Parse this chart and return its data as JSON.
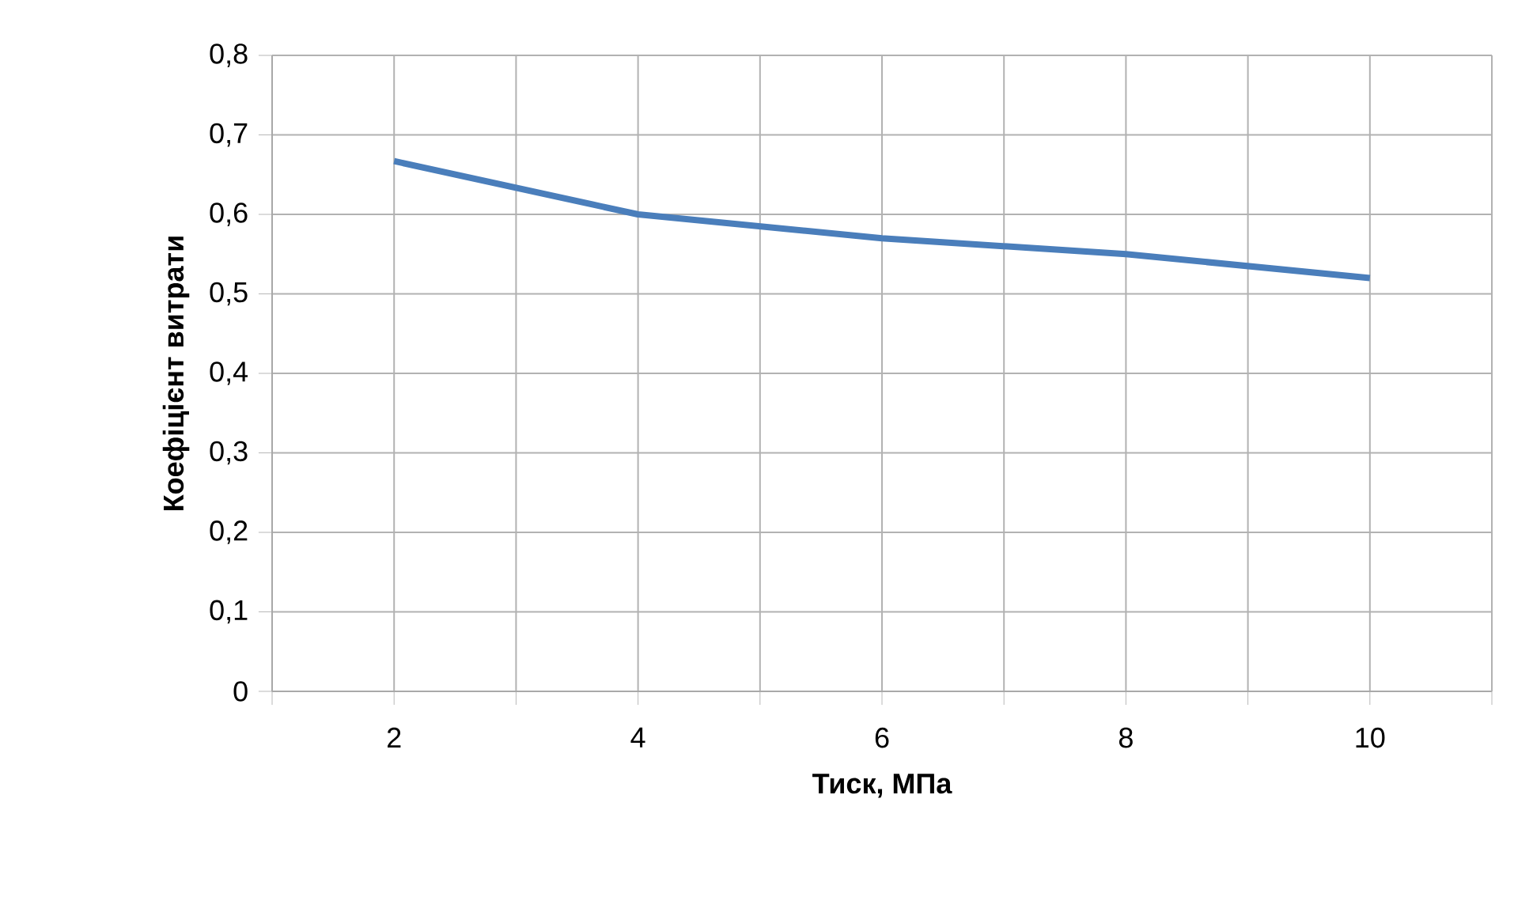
{
  "chart_data": {
    "type": "line",
    "xlabel": "Тиск, МПа",
    "ylabel": "Коефіцієнт витрати",
    "x": [
      2,
      4,
      6,
      8,
      10
    ],
    "series": [
      {
        "color": "#4a7ebb",
        "values": [
          0.667,
          0.6,
          0.57,
          0.55,
          0.52
        ]
      }
    ],
    "xlim": [
      1,
      11
    ],
    "xticks": [
      {
        "value": 1,
        "label": null
      },
      2,
      {
        "value": 3,
        "label": null
      },
      4,
      {
        "value": 5,
        "label": null
      },
      6,
      {
        "value": 7,
        "label": null
      },
      8,
      {
        "value": 9,
        "label": null
      },
      10,
      {
        "value": 11,
        "label": null
      }
    ],
    "ylim": [
      0,
      0.8
    ],
    "yticks": [
      0,
      {
        "value": 0.1,
        "label": "0,1"
      },
      {
        "value": 0.2,
        "label": "0,2"
      },
      {
        "value": 0.3,
        "label": "0,3"
      },
      {
        "value": 0.4,
        "label": "0,4"
      },
      {
        "value": 0.5,
        "label": "0,5"
      },
      {
        "value": 0.6,
        "label": "0,6"
      },
      {
        "value": 0.7,
        "label": "0,7"
      },
      {
        "value": 0.8,
        "label": "0,8"
      }
    ],
    "grid": true,
    "marker": "none",
    "line_style": "solid"
  }
}
